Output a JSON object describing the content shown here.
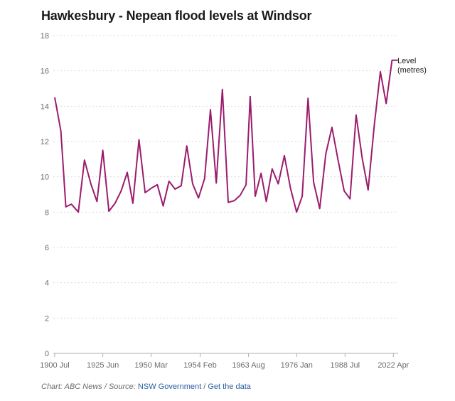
{
  "title": "Hawkesbury - Nepean flood levels at Windsor",
  "footer": {
    "chart_prefix": "Chart: ABC News / Source: ",
    "source_link": "NSW Government",
    "separator": " / ",
    "data_link": "Get the data"
  },
  "colors": {
    "line": "#9b1c6e",
    "grid": "#d9d9d9",
    "axis": "#b0b0b0",
    "link": "#2a5d9f"
  },
  "chart_data": {
    "type": "line",
    "title": "Hawkesbury - Nepean flood levels at Windsor",
    "xlabel": "",
    "ylabel": "Level (metres)",
    "ylim": [
      0,
      18
    ],
    "yticks": [
      0,
      2,
      4,
      6,
      8,
      10,
      12,
      14,
      16,
      18
    ],
    "xlim": [
      1900,
      2024
    ],
    "xticks": [
      {
        "pos": 1900.5,
        "label": "1900 Jul"
      },
      {
        "pos": 1917.8,
        "label": "1925 Jun"
      },
      {
        "pos": 1935.2,
        "label": "1950 Mar"
      },
      {
        "pos": 1952.8,
        "label": "1954 Feb"
      },
      {
        "pos": 1970.2,
        "label": "1963 Aug"
      },
      {
        "pos": 1987.5,
        "label": "1976 Jan"
      },
      {
        "pos": 2004.9,
        "label": "1988 Jul"
      },
      {
        "pos": 2022.3,
        "label": "2022 Apr"
      }
    ],
    "series": [
      {
        "name": "Level (metres)",
        "label_lines": [
          "Level",
          "(metres)"
        ],
        "x": [
          1900.5,
          1902.7,
          1904.5,
          1906.5,
          1909.0,
          1911.2,
          1913.5,
          1915.7,
          1917.8,
          1920.0,
          1922.2,
          1924.4,
          1926.6,
          1928.6,
          1930.8,
          1933.0,
          1935.2,
          1937.4,
          1939.5,
          1941.6,
          1943.8,
          1946.0,
          1948.0,
          1950.1,
          1952.2,
          1954.4,
          1956.5,
          1958.6,
          1960.8,
          1962.9,
          1965.1,
          1967.2,
          1969.3,
          1970.8,
          1972.6,
          1974.7,
          1976.6,
          1978.7,
          1980.9,
          1983.1,
          1985.3,
          1987.5,
          1989.5,
          1991.6,
          1993.6,
          1995.8,
          1998.0,
          2000.2,
          2002.4,
          2004.6,
          2006.7,
          2008.9,
          2011.1,
          2013.2,
          2015.4,
          2017.6,
          2019.7,
          2021.8,
          2023.9
        ],
        "y": [
          14.5,
          12.6,
          8.3,
          8.45,
          8.0,
          10.95,
          9.6,
          8.6,
          11.5,
          8.05,
          8.5,
          9.2,
          10.25,
          8.5,
          12.1,
          9.1,
          9.35,
          9.55,
          8.35,
          9.75,
          9.3,
          9.5,
          11.75,
          9.6,
          8.8,
          9.9,
          13.8,
          9.65,
          14.95,
          8.55,
          8.65,
          8.95,
          9.55,
          14.55,
          8.9,
          10.2,
          8.6,
          10.45,
          9.6,
          11.2,
          9.35,
          8.0,
          8.9,
          14.45,
          9.7,
          8.2,
          11.3,
          12.8,
          10.95,
          9.2,
          8.75,
          13.5,
          11.05,
          9.25,
          12.9,
          15.95,
          14.15,
          16.6,
          16.6
        ]
      }
    ]
  }
}
